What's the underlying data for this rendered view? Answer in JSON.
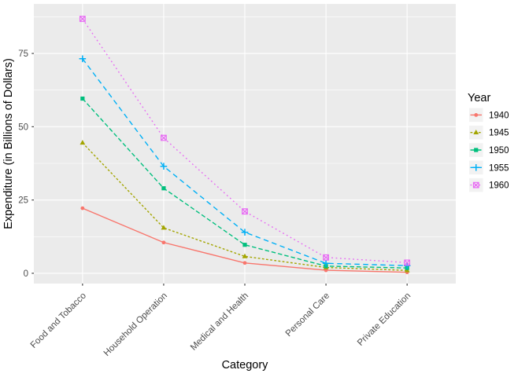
{
  "chart_data": {
    "type": "line",
    "title": "",
    "xlabel": "Category",
    "ylabel": "Expenditure (in Billions of Dollars)",
    "categories": [
      "Food and Tobacco",
      "Household Operation",
      "Medical and Health",
      "Personal Care",
      "Private Education"
    ],
    "series": [
      {
        "name": "1940",
        "color": "#F8766D",
        "marker": "circle",
        "linetype": "solid",
        "values": [
          22.2,
          10.5,
          3.53,
          1.04,
          0.341
        ]
      },
      {
        "name": "1945",
        "color": "#A3A500",
        "marker": "triangle",
        "linetype": "22",
        "values": [
          44.5,
          15.5,
          5.76,
          1.98,
          0.974
        ]
      },
      {
        "name": "1950",
        "color": "#00BF7D",
        "marker": "square",
        "linetype": "42",
        "values": [
          59.6,
          29.0,
          9.71,
          2.45,
          1.8
        ]
      },
      {
        "name": "1955",
        "color": "#00B0F6",
        "marker": "plus",
        "linetype": "44",
        "values": [
          73.2,
          36.5,
          14.0,
          3.4,
          2.6
        ]
      },
      {
        "name": "1960",
        "color": "#E76BF3",
        "marker": "square-cross",
        "linetype": "13",
        "values": [
          86.8,
          46.2,
          21.1,
          5.4,
          3.64
        ]
      }
    ],
    "y_ticks": [
      0,
      25,
      50,
      75
    ],
    "y_minor_gridlines": [
      12.5,
      37.5,
      62.5,
      87.5
    ],
    "ylim": [
      -3.5,
      91.9
    ],
    "grid": "on",
    "legend": {
      "title": "Year",
      "position": "right"
    },
    "colors": {
      "panel_bg": "#EBEBEB",
      "gridline": "#FFFFFF",
      "legend_key_bg": "#F2F2F2",
      "axis_text": "#4D4D4D",
      "axis_title": "#000000",
      "tick_mark": "#333333"
    }
  }
}
